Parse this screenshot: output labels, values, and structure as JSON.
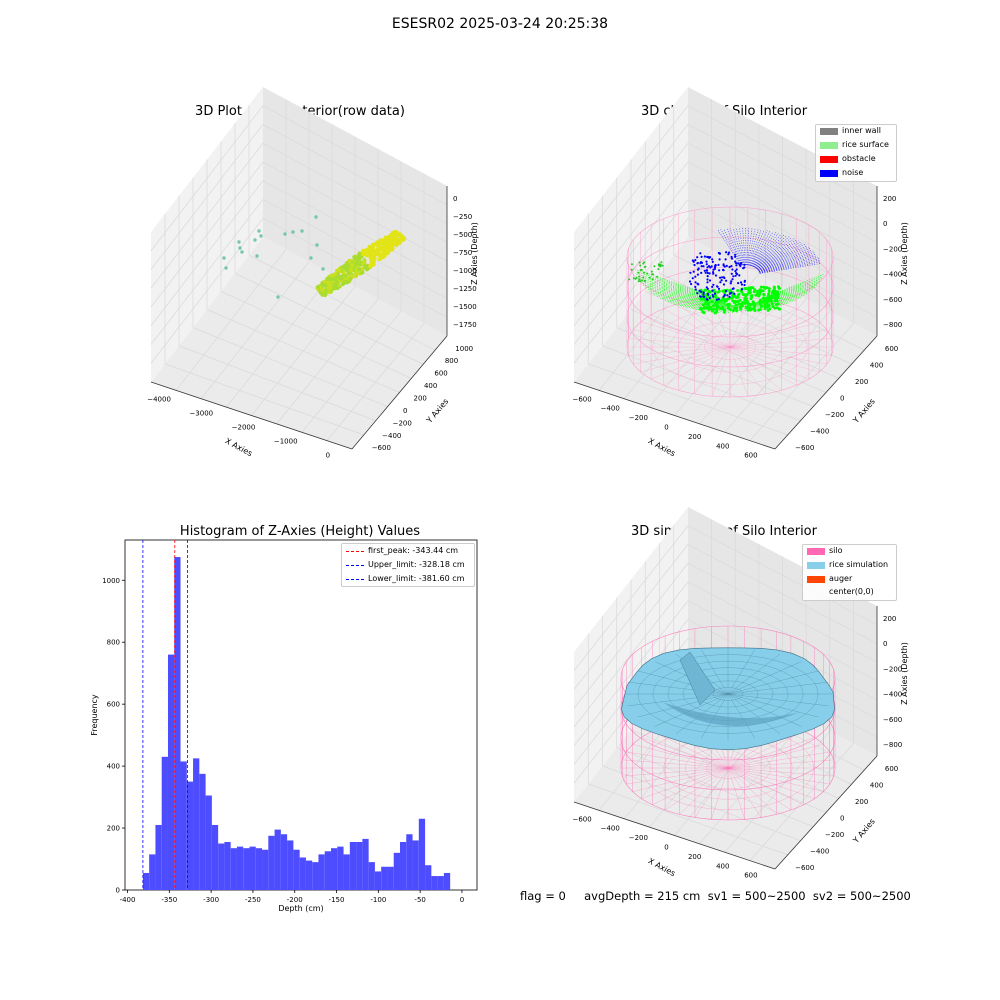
{
  "suptitle": "ESESR02 2025-03-24 20:25:38",
  "footer": "flag = 0     avgDepth = 215 cm  sv1 = 500~2500  sv2 = 500~2500",
  "colors": {
    "raw_scatter": "#d4e21a",
    "raw_outlier": "#62c0a0",
    "inner_wall": "#808080",
    "rice_surface": "#90ee90",
    "rice_points": "#00ff00",
    "obstacle": "#ff0000",
    "noise": "#0000ff",
    "silo": "#ff69b4",
    "rice_simulation": "#87ceeb",
    "auger": "#ff4500",
    "hist_bar": "#4d4dff"
  },
  "chart_data": [
    {
      "type": "scatter",
      "title": "3D Plot of Silo Interior(row data)",
      "xlabel": "X Axies",
      "ylabel": "Y Axies",
      "zlabel": "Z Axies (Depth)",
      "x_ticks": [
        "−4000",
        "−3000",
        "−2000",
        "−1000",
        "0"
      ],
      "y_ticks": [
        "−600",
        "−400",
        "−200",
        "0",
        "200",
        "400",
        "600",
        "800",
        "1000"
      ],
      "z_ticks": [
        "0",
        "−250",
        "−500",
        "−750",
        "−1000",
        "−1250",
        "−1500",
        "−1750"
      ]
    },
    {
      "type": "scatter",
      "title": "3D classify of Silo Interior",
      "xlabel": "X Axies",
      "ylabel": "Y Axies",
      "zlabel": "Z Axies (Depth)",
      "x_ticks": [
        "−600",
        "−400",
        "−200",
        "0",
        "200",
        "400",
        "600"
      ],
      "y_ticks": [
        "−600",
        "−400",
        "−200",
        "0",
        "200",
        "400",
        "600"
      ],
      "z_ticks": [
        "200",
        "0",
        "−200",
        "−400",
        "−600",
        "−800"
      ],
      "legend": [
        "inner wall",
        "rice surface",
        "obstacle",
        "noise"
      ],
      "legend_position": "top-right"
    },
    {
      "type": "bar",
      "title": "Histogram of Z-Axies (Height) Values",
      "xlabel": "Depth (cm)",
      "ylabel": "Frequency",
      "xlim": [
        -403,
        18
      ],
      "ylim": [
        0,
        1130
      ],
      "x_ticks": [
        -400,
        -350,
        -300,
        -250,
        -200,
        -150,
        -100,
        -50,
        0
      ],
      "y_ticks": [
        0,
        200,
        400,
        600,
        800,
        1000
      ],
      "bin_start": -381.6,
      "bin_width": 7.5,
      "values": [
        55,
        115,
        210,
        430,
        760,
        1075,
        415,
        350,
        425,
        375,
        305,
        210,
        150,
        155,
        135,
        140,
        135,
        140,
        135,
        130,
        175,
        195,
        180,
        160,
        130,
        105,
        95,
        90,
        115,
        125,
        135,
        140,
        115,
        155,
        155,
        165,
        90,
        60,
        75,
        75,
        120,
        155,
        180,
        160,
        230,
        80,
        45,
        45,
        55
      ],
      "vlines": [
        {
          "label": "first_peak: -343.44 cm",
          "x": -343.44,
          "color": "#ff0000"
        },
        {
          "label": "Upper_limit: -328.18 cm",
          "x": -328.18,
          "color": "#0000ff"
        },
        {
          "label": "Lower_limit: -381.60 cm",
          "x": -381.6,
          "color": "#0000ff"
        }
      ],
      "legend_position": "top-right"
    },
    {
      "type": "surface",
      "title": "3D simulation of Silo Interior",
      "xlabel": "X Axies",
      "ylabel": "Y Axies",
      "zlabel": "Z Axies (Depth)",
      "x_ticks": [
        "−600",
        "−400",
        "−200",
        "0",
        "200",
        "400",
        "600"
      ],
      "y_ticks": [
        "−600",
        "−400",
        "−200",
        "0",
        "200",
        "400",
        "600"
      ],
      "z_ticks": [
        "200",
        "0",
        "−200",
        "−400",
        "−600",
        "−800"
      ],
      "legend": [
        "silo",
        "rice simulation",
        "auger",
        "center(0,0)"
      ],
      "legend_position": "top-right"
    }
  ]
}
